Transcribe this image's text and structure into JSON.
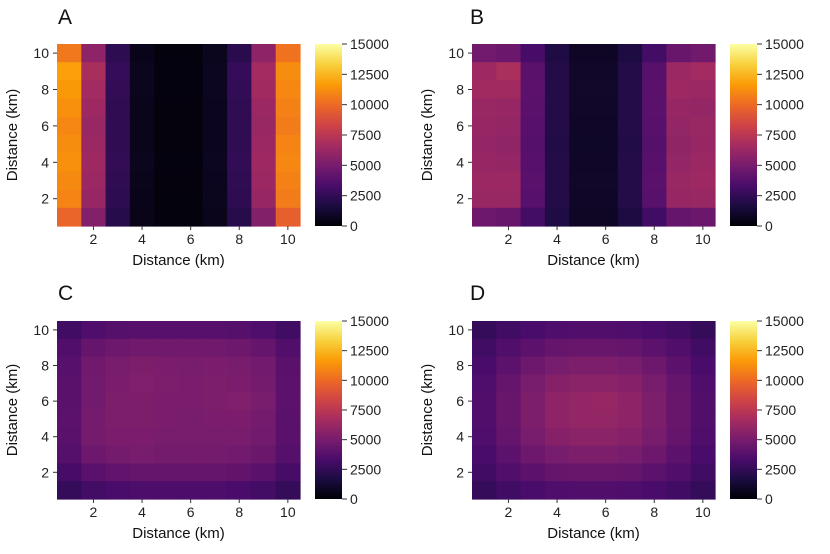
{
  "colors": {
    "background": "#ffffff",
    "colormap": [
      "#000004",
      "#1b0c41",
      "#4a0c6b",
      "#781c6d",
      "#a52c60",
      "#cf4446",
      "#ed6925",
      "#fb9b06",
      "#f7d13d",
      "#fcffa4"
    ]
  },
  "chart_data": [
    {
      "type": "heatmap",
      "panel": "A",
      "xlabel": "Distance (km)",
      "ylabel": "Distance (km)",
      "x_ticks": [
        "2",
        "4",
        "6",
        "8",
        "10"
      ],
      "y_ticks": [
        "2",
        "4",
        "6",
        "8",
        "10"
      ],
      "xlim": [
        0.5,
        10.5
      ],
      "ylim": [
        0.5,
        10.5
      ],
      "colorbar": {
        "min": 0,
        "max": 15000,
        "ticks": [
          "0",
          "2500",
          "5000",
          "7500",
          "10000",
          "12500",
          "15000"
        ]
      },
      "values_note": "rows from y=10 (top) to y=1 (bottom); columns x=1..10",
      "values": [
        [
          10500,
          5800,
          2300,
          600,
          250,
          250,
          700,
          2200,
          5800,
          10300
        ],
        [
          11800,
          6800,
          2600,
          700,
          300,
          300,
          800,
          2600,
          6600,
          11200
        ],
        [
          11600,
          6600,
          2500,
          700,
          300,
          300,
          800,
          2500,
          6500,
          11000
        ],
        [
          11300,
          6400,
          2400,
          650,
          280,
          280,
          750,
          2400,
          6300,
          10800
        ],
        [
          11000,
          6200,
          2400,
          650,
          280,
          280,
          750,
          2400,
          6200,
          10600
        ],
        [
          11200,
          6300,
          2400,
          650,
          280,
          280,
          750,
          2400,
          6300,
          10900
        ],
        [
          11300,
          6400,
          2500,
          700,
          300,
          300,
          800,
          2500,
          6400,
          11000
        ],
        [
          11100,
          6300,
          2400,
          650,
          280,
          280,
          750,
          2400,
          6300,
          10800
        ],
        [
          10900,
          6100,
          2300,
          600,
          250,
          250,
          700,
          2300,
          6100,
          10600
        ],
        [
          9800,
          5400,
          2100,
          550,
          230,
          230,
          650,
          2100,
          5400,
          9600
        ]
      ]
    },
    {
      "type": "heatmap",
      "panel": "B",
      "xlabel": "Distance (km)",
      "ylabel": "Distance (km)",
      "x_ticks": [
        "2",
        "4",
        "6",
        "8",
        "10"
      ],
      "y_ticks": [
        "2",
        "4",
        "6",
        "8",
        "10"
      ],
      "xlim": [
        0.5,
        10.5
      ],
      "ylim": [
        0.5,
        10.5
      ],
      "colorbar": {
        "min": 0,
        "max": 15000,
        "ticks": [
          "0",
          "2500",
          "5000",
          "7500",
          "10000",
          "12500",
          "15000"
        ]
      },
      "values_note": "rows from y=10 (top) to y=1 (bottom); columns x=1..10",
      "values": [
        [
          4800,
          4500,
          3200,
          1800,
          900,
          900,
          1700,
          3100,
          4400,
          4700
        ],
        [
          6400,
          6900,
          3900,
          2000,
          1000,
          1000,
          2000,
          3800,
          6300,
          6600
        ],
        [
          6500,
          6500,
          4000,
          2000,
          1050,
          1050,
          2000,
          3900,
          6400,
          6300
        ],
        [
          6200,
          6100,
          3900,
          2000,
          1000,
          1000,
          2000,
          3900,
          6100,
          6000
        ],
        [
          6100,
          6000,
          3800,
          1950,
          980,
          980,
          1950,
          3800,
          6000,
          6200
        ],
        [
          6000,
          5900,
          3700,
          1900,
          950,
          950,
          1900,
          3700,
          5900,
          6100
        ],
        [
          6100,
          6000,
          3800,
          1950,
          980,
          980,
          1950,
          3800,
          6000,
          6300
        ],
        [
          6300,
          6300,
          3900,
          2000,
          1000,
          1000,
          2000,
          3900,
          6200,
          6400
        ],
        [
          6200,
          6200,
          3800,
          1950,
          980,
          980,
          1950,
          3800,
          6100,
          6200
        ],
        [
          4600,
          4400,
          3100,
          1800,
          900,
          900,
          1700,
          3000,
          4300,
          4500
        ]
      ]
    },
    {
      "type": "heatmap",
      "panel": "C",
      "xlabel": "Distance (km)",
      "ylabel": "Distance (km)",
      "x_ticks": [
        "2",
        "4",
        "6",
        "8",
        "10"
      ],
      "y_ticks": [
        "2",
        "4",
        "6",
        "8",
        "10"
      ],
      "xlim": [
        0.5,
        10.5
      ],
      "ylim": [
        0.5,
        10.5
      ],
      "colorbar": {
        "min": 0,
        "max": 15000,
        "ticks": [
          "0",
          "2500",
          "5000",
          "7500",
          "10000",
          "12500",
          "15000"
        ]
      },
      "values_note": "rows from y=10 (top) to y=1 (bottom); columns x=1..10",
      "values": [
        [
          3000,
          3500,
          3700,
          3800,
          3800,
          3800,
          3800,
          3700,
          3500,
          3000
        ],
        [
          3600,
          4300,
          4600,
          4700,
          4700,
          4700,
          4700,
          4600,
          4300,
          3600
        ],
        [
          3800,
          4700,
          5000,
          5200,
          5100,
          5000,
          5100,
          5000,
          4800,
          3900
        ],
        [
          3900,
          4800,
          5100,
          5300,
          5200,
          5100,
          5200,
          5100,
          4900,
          4000
        ],
        [
          3900,
          4800,
          5200,
          5200,
          5100,
          5100,
          5200,
          5300,
          5000,
          4000
        ],
        [
          4000,
          4900,
          5200,
          5200,
          5100,
          5000,
          5100,
          5100,
          4900,
          3900
        ],
        [
          3900,
          4900,
          5100,
          5100,
          5000,
          5000,
          5000,
          5000,
          4800,
          3900
        ],
        [
          3700,
          4600,
          4900,
          5000,
          4900,
          4900,
          4900,
          4800,
          4500,
          3700
        ],
        [
          3200,
          3900,
          4200,
          4300,
          4300,
          4300,
          4300,
          4200,
          3900,
          3200
        ],
        [
          2600,
          3100,
          3300,
          3400,
          3400,
          3400,
          3400,
          3300,
          3100,
          2600
        ]
      ]
    },
    {
      "type": "heatmap",
      "panel": "D",
      "xlabel": "Distance (km)",
      "ylabel": "Distance (km)",
      "x_ticks": [
        "2",
        "4",
        "6",
        "8",
        "10"
      ],
      "y_ticks": [
        "2",
        "4",
        "6",
        "8",
        "10"
      ],
      "xlim": [
        0.5,
        10.5
      ],
      "ylim": [
        0.5,
        10.5
      ],
      "colorbar": {
        "min": 0,
        "max": 15000,
        "ticks": [
          "0",
          "2500",
          "5000",
          "7500",
          "10000",
          "12500",
          "15000"
        ]
      },
      "values_note": "rows from y=10 (top) to y=1 (bottom); columns x=1..10",
      "values": [
        [
          2600,
          3000,
          3300,
          3500,
          3600,
          3600,
          3500,
          3300,
          3000,
          2600
        ],
        [
          3000,
          3600,
          4000,
          4300,
          4400,
          4400,
          4300,
          4000,
          3600,
          3000
        ],
        [
          3300,
          4000,
          4600,
          5000,
          5200,
          5200,
          5000,
          4600,
          4000,
          3300
        ],
        [
          3500,
          4300,
          5000,
          5500,
          5700,
          5700,
          5500,
          5000,
          4300,
          3500
        ],
        [
          3600,
          4400,
          5200,
          5800,
          6000,
          6100,
          5800,
          5200,
          4400,
          3600
        ],
        [
          3600,
          4400,
          5200,
          5800,
          6000,
          6000,
          5800,
          5200,
          4400,
          3600
        ],
        [
          3500,
          4300,
          5000,
          5500,
          5700,
          5700,
          5500,
          5000,
          4300,
          3500
        ],
        [
          3300,
          4000,
          4600,
          5000,
          5200,
          5200,
          5000,
          4600,
          4000,
          3300
        ],
        [
          3000,
          3600,
          4000,
          4300,
          4400,
          4400,
          4300,
          4000,
          3600,
          3000
        ],
        [
          2600,
          3000,
          3300,
          3500,
          3600,
          3600,
          3500,
          3300,
          3000,
          2600
        ]
      ]
    }
  ]
}
